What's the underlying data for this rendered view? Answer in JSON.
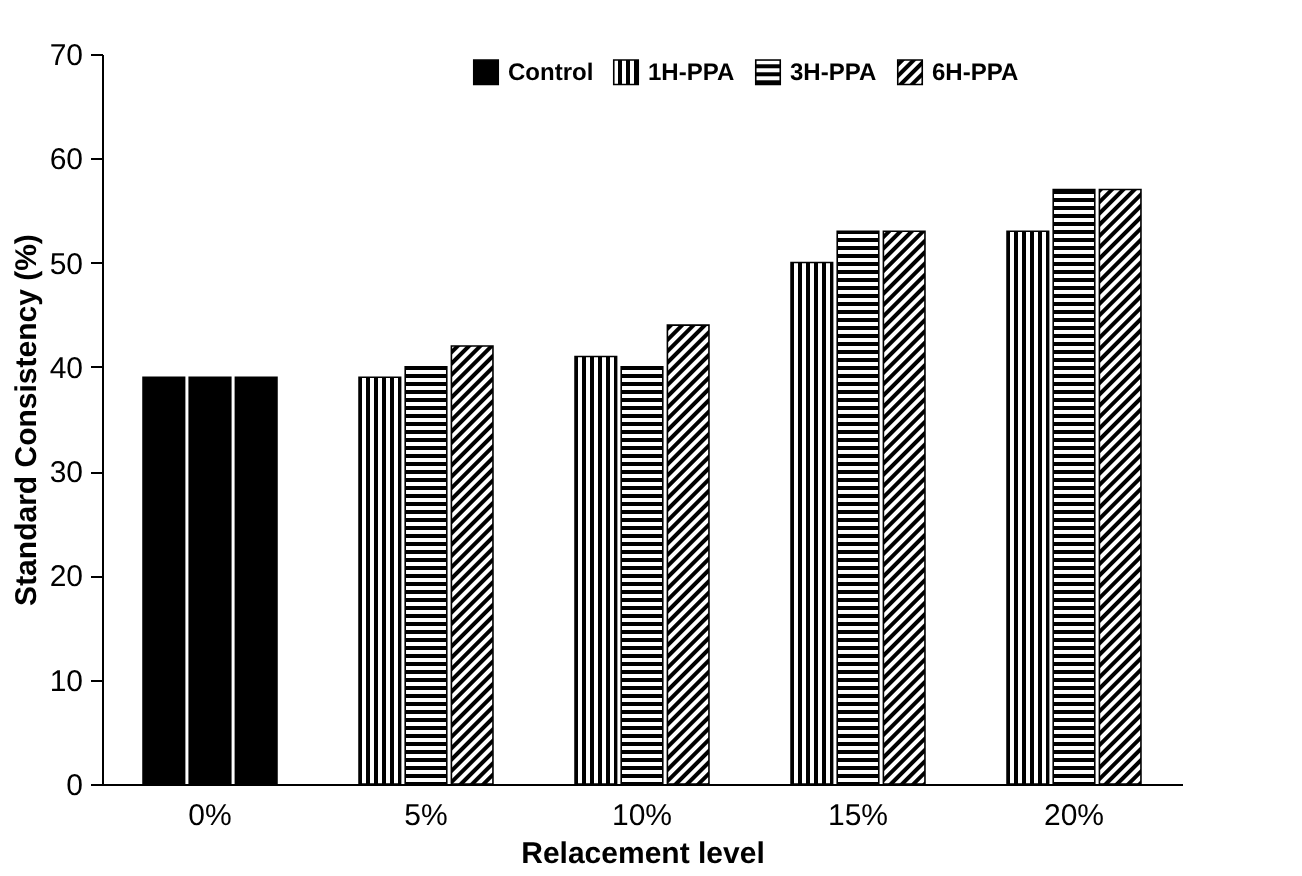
{
  "chart_data": {
    "type": "bar",
    "xlabel": "Relacement level",
    "ylabel": "Standard Consistency (%)",
    "categories": [
      "0%",
      "5%",
      "10%",
      "15%",
      "20%"
    ],
    "series": [
      {
        "name": "Control",
        "color": "#000000",
        "values": [
          null,
          null,
          null,
          null,
          null
        ]
      },
      {
        "name": "1H-PPA",
        "color": "#000000",
        "values": [
          39,
          39,
          41,
          50,
          53
        ],
        "colors": [
          "#000000",
          null,
          null,
          null,
          null
        ]
      },
      {
        "name": "3H-PPA",
        "color": "#000000",
        "values": [
          39,
          40,
          40,
          53,
          57
        ],
        "colors": [
          "#000000",
          null,
          null,
          null,
          null
        ]
      },
      {
        "name": "6H-PPA",
        "color": "#000000",
        "values": [
          39,
          42,
          44,
          53,
          57
        ],
        "colors": [
          "#000000",
          null,
          null,
          null,
          null
        ]
      }
    ],
    "ylim": [
      0,
      70
    ],
    "yticks": [
      0,
      10,
      20,
      30,
      40,
      50,
      60,
      70
    ],
    "grid": false,
    "legend": "top"
  }
}
